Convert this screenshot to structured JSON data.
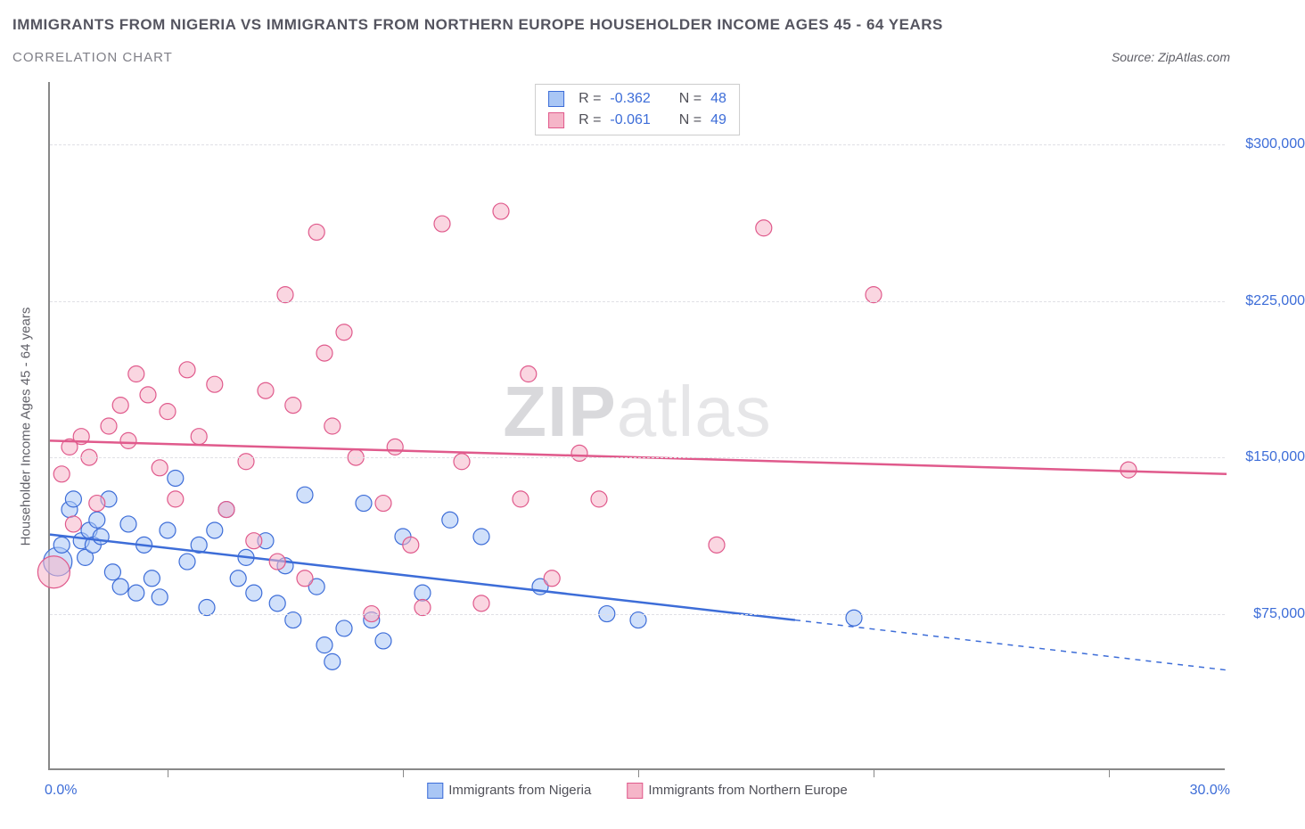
{
  "title": "IMMIGRANTS FROM NIGERIA VS IMMIGRANTS FROM NORTHERN EUROPE HOUSEHOLDER INCOME AGES 45 - 64 YEARS",
  "subtitle": "CORRELATION CHART",
  "source": "Source: ZipAtlas.com",
  "y_axis_title": "Householder Income Ages 45 - 64 years",
  "watermark_bold": "ZIP",
  "watermark_rest": "atlas",
  "chart": {
    "type": "scatter",
    "background_color": "#ffffff",
    "grid_color": "#e0e0e5",
    "axis_color": "#888888",
    "label_color": "#3d6dd8",
    "text_color": "#606068",
    "marker_radius": 9,
    "marker_radius_large": 16,
    "marker_opacity": 0.55,
    "marker_stroke_width": 1.2,
    "trend_line_width": 2.5,
    "x_axis": {
      "min": 0.0,
      "max": 30.0,
      "min_label": "0.0%",
      "max_label": "30.0%",
      "tick_positions": [
        3.0,
        9.0,
        15.0,
        21.0,
        27.0
      ]
    },
    "y_axis": {
      "min": 0,
      "max": 330000,
      "ticks": [
        {
          "v": 75000,
          "label": "$75,000"
        },
        {
          "v": 150000,
          "label": "$150,000"
        },
        {
          "v": 225000,
          "label": "$225,000"
        },
        {
          "v": 300000,
          "label": "$300,000"
        }
      ]
    },
    "series": [
      {
        "id": "nigeria",
        "name": "Immigrants from Nigeria",
        "fill_color": "#a9c6f5",
        "stroke_color": "#3d6dd8",
        "legend_fill": "#a9c6f5",
        "legend_border": "#3d6dd8",
        "R": "-0.362",
        "N": "48",
        "trend": {
          "x1": 0.0,
          "y1": 113000,
          "x2": 19.0,
          "y2": 72000,
          "ext_x2": 30.0,
          "ext_y2": 48000,
          "dash_ext": true
        },
        "points": [
          {
            "x": 0.2,
            "y": 100000,
            "r": 16
          },
          {
            "x": 0.3,
            "y": 108000
          },
          {
            "x": 0.5,
            "y": 125000
          },
          {
            "x": 0.6,
            "y": 130000
          },
          {
            "x": 0.8,
            "y": 110000
          },
          {
            "x": 0.9,
            "y": 102000
          },
          {
            "x": 1.0,
            "y": 115000
          },
          {
            "x": 1.1,
            "y": 108000
          },
          {
            "x": 1.2,
            "y": 120000
          },
          {
            "x": 1.3,
            "y": 112000
          },
          {
            "x": 1.5,
            "y": 130000
          },
          {
            "x": 1.6,
            "y": 95000
          },
          {
            "x": 1.8,
            "y": 88000
          },
          {
            "x": 2.0,
            "y": 118000
          },
          {
            "x": 2.2,
            "y": 85000
          },
          {
            "x": 2.4,
            "y": 108000
          },
          {
            "x": 2.6,
            "y": 92000
          },
          {
            "x": 2.8,
            "y": 83000
          },
          {
            "x": 3.0,
            "y": 115000
          },
          {
            "x": 3.2,
            "y": 140000
          },
          {
            "x": 3.5,
            "y": 100000
          },
          {
            "x": 3.8,
            "y": 108000
          },
          {
            "x": 4.0,
            "y": 78000
          },
          {
            "x": 4.2,
            "y": 115000
          },
          {
            "x": 4.5,
            "y": 125000
          },
          {
            "x": 4.8,
            "y": 92000
          },
          {
            "x": 5.0,
            "y": 102000
          },
          {
            "x": 5.2,
            "y": 85000
          },
          {
            "x": 5.5,
            "y": 110000
          },
          {
            "x": 5.8,
            "y": 80000
          },
          {
            "x": 6.0,
            "y": 98000
          },
          {
            "x": 6.2,
            "y": 72000
          },
          {
            "x": 6.5,
            "y": 132000
          },
          {
            "x": 6.8,
            "y": 88000
          },
          {
            "x": 7.0,
            "y": 60000
          },
          {
            "x": 7.2,
            "y": 52000
          },
          {
            "x": 7.5,
            "y": 68000
          },
          {
            "x": 8.0,
            "y": 128000
          },
          {
            "x": 8.2,
            "y": 72000
          },
          {
            "x": 8.5,
            "y": 62000
          },
          {
            "x": 9.0,
            "y": 112000
          },
          {
            "x": 9.5,
            "y": 85000
          },
          {
            "x": 10.2,
            "y": 120000
          },
          {
            "x": 11.0,
            "y": 112000
          },
          {
            "x": 12.5,
            "y": 88000
          },
          {
            "x": 14.2,
            "y": 75000
          },
          {
            "x": 15.0,
            "y": 72000
          },
          {
            "x": 20.5,
            "y": 73000
          }
        ]
      },
      {
        "id": "neurope",
        "name": "Immigrants from Northern Europe",
        "fill_color": "#f5b5c8",
        "stroke_color": "#e05a8c",
        "legend_fill": "#f5b5c8",
        "legend_border": "#e05a8c",
        "R": "-0.061",
        "N": "49",
        "trend": {
          "x1": 0.0,
          "y1": 158000,
          "x2": 30.0,
          "y2": 142000,
          "dash_ext": false
        },
        "points": [
          {
            "x": 0.1,
            "y": 95000,
            "r": 18
          },
          {
            "x": 0.3,
            "y": 142000
          },
          {
            "x": 0.5,
            "y": 155000
          },
          {
            "x": 0.6,
            "y": 118000
          },
          {
            "x": 0.8,
            "y": 160000
          },
          {
            "x": 1.0,
            "y": 150000
          },
          {
            "x": 1.2,
            "y": 128000
          },
          {
            "x": 1.5,
            "y": 165000
          },
          {
            "x": 1.8,
            "y": 175000
          },
          {
            "x": 2.0,
            "y": 158000
          },
          {
            "x": 2.2,
            "y": 190000
          },
          {
            "x": 2.5,
            "y": 180000
          },
          {
            "x": 2.8,
            "y": 145000
          },
          {
            "x": 3.0,
            "y": 172000
          },
          {
            "x": 3.2,
            "y": 130000
          },
          {
            "x": 3.5,
            "y": 192000
          },
          {
            "x": 3.8,
            "y": 160000
          },
          {
            "x": 4.2,
            "y": 185000
          },
          {
            "x": 4.5,
            "y": 125000
          },
          {
            "x": 5.0,
            "y": 148000
          },
          {
            "x": 5.2,
            "y": 110000
          },
          {
            "x": 5.5,
            "y": 182000
          },
          {
            "x": 5.8,
            "y": 100000
          },
          {
            "x": 6.0,
            "y": 228000
          },
          {
            "x": 6.2,
            "y": 175000
          },
          {
            "x": 6.5,
            "y": 92000
          },
          {
            "x": 6.8,
            "y": 258000
          },
          {
            "x": 7.0,
            "y": 200000
          },
          {
            "x": 7.2,
            "y": 165000
          },
          {
            "x": 7.5,
            "y": 210000
          },
          {
            "x": 7.8,
            "y": 150000
          },
          {
            "x": 8.2,
            "y": 75000
          },
          {
            "x": 8.5,
            "y": 128000
          },
          {
            "x": 8.8,
            "y": 155000
          },
          {
            "x": 9.2,
            "y": 108000
          },
          {
            "x": 9.5,
            "y": 78000
          },
          {
            "x": 10.0,
            "y": 262000
          },
          {
            "x": 10.5,
            "y": 148000
          },
          {
            "x": 11.0,
            "y": 80000
          },
          {
            "x": 11.5,
            "y": 268000
          },
          {
            "x": 12.0,
            "y": 130000
          },
          {
            "x": 12.2,
            "y": 190000
          },
          {
            "x": 12.8,
            "y": 92000
          },
          {
            "x": 13.5,
            "y": 152000
          },
          {
            "x": 14.0,
            "y": 130000
          },
          {
            "x": 17.0,
            "y": 108000
          },
          {
            "x": 18.2,
            "y": 260000
          },
          {
            "x": 21.0,
            "y": 228000
          },
          {
            "x": 27.5,
            "y": 144000
          }
        ]
      }
    ]
  },
  "stats_labels": {
    "R": "R =",
    "N": "N ="
  },
  "legend_title": ""
}
